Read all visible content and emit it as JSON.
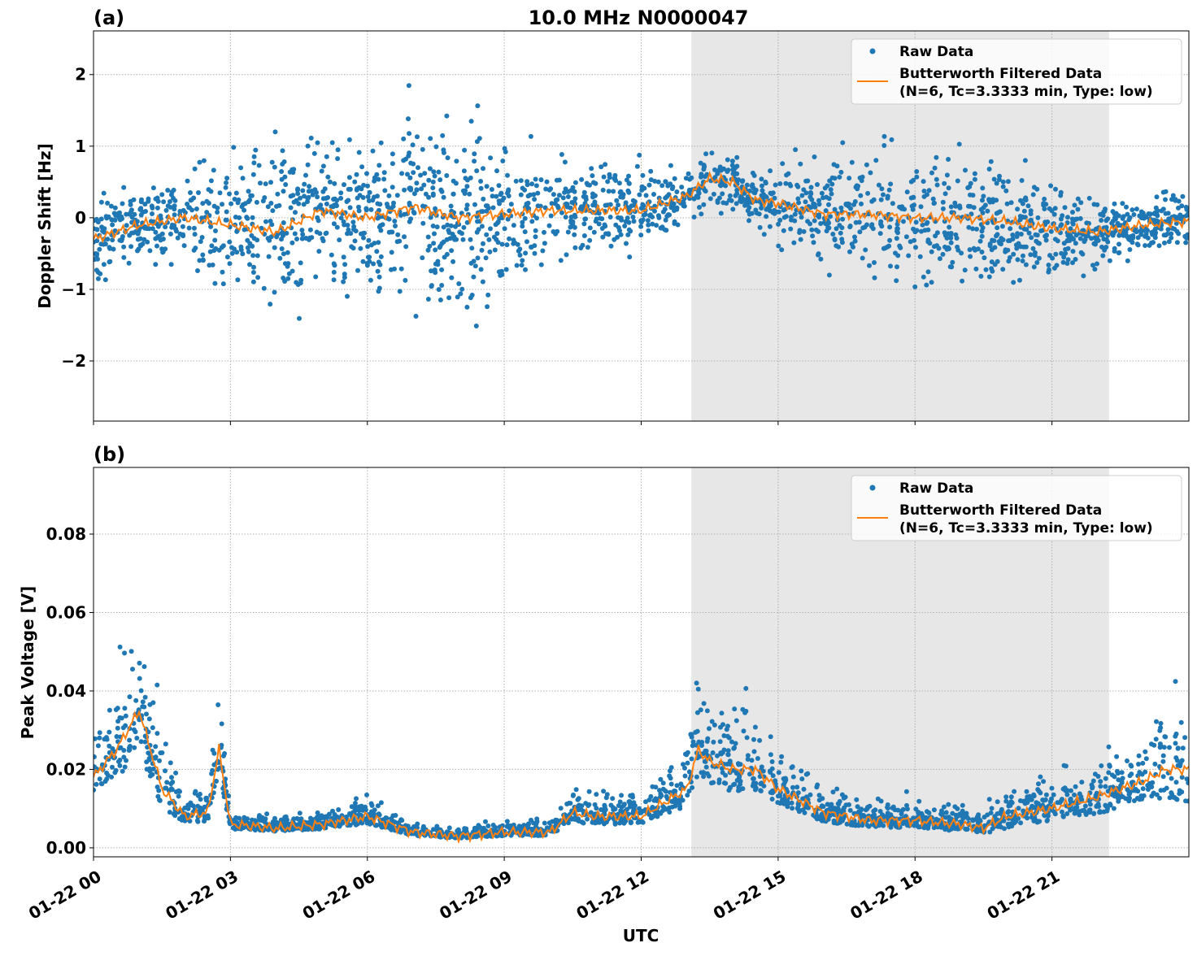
{
  "title": "10.0 MHz N0000047",
  "xlabel": "UTC",
  "x_tick_labels": [
    "01-22 00",
    "01-22 03",
    "01-22 06",
    "01-22 09",
    "01-22 12",
    "01-22 15",
    "01-22 18",
    "01-22 21"
  ],
  "colors": {
    "raw": "#1f77b4",
    "filtered": "#ff7f0e",
    "shade": "#e7e7e7"
  },
  "chart_data": [
    {
      "type": "scatter+line",
      "panel_label": "(a)",
      "ylabel": "Doppler Shift [Hz]",
      "xlim_hours": [
        0,
        24
      ],
      "ylim": [
        -2.84,
        2.61
      ],
      "y_ticks": [
        -2,
        -1,
        0,
        1,
        2
      ],
      "y_tick_labels": [
        "−2",
        "−1",
        "0",
        "1",
        "2"
      ],
      "grid": true,
      "shaded_region_hours": [
        13.1,
        22.25
      ],
      "legend": {
        "placement": "top-right",
        "raw": "Raw Data",
        "filtered_line1": "Butterworth Filtered Data",
        "filtered_line2": "(N=6, Tc=3.3333 min, Type: low)"
      },
      "x_hours": [
        0,
        1,
        2,
        3,
        4,
        5,
        6,
        7,
        8,
        9,
        10,
        11,
        12,
        13,
        13.5,
        14,
        14.5,
        15,
        16,
        17,
        18,
        19,
        20,
        21,
        22,
        23,
        24
      ],
      "filtered": [
        -0.3,
        -0.1,
        0.0,
        -0.1,
        -0.2,
        0.1,
        0.0,
        0.15,
        0.0,
        0.05,
        0.1,
        0.1,
        0.1,
        0.3,
        0.55,
        0.5,
        0.25,
        0.2,
        0.05,
        0.05,
        0.0,
        0.0,
        -0.05,
        -0.15,
        -0.2,
        -0.1,
        -0.05
      ],
      "raw_spread": [
        0.5,
        0.4,
        0.6,
        0.9,
        1.0,
        0.9,
        0.7,
        1.1,
        1.1,
        1.0,
        0.6,
        0.5,
        0.5,
        0.3,
        0.4,
        0.35,
        0.3,
        0.5,
        0.6,
        0.7,
        0.7,
        0.8,
        0.7,
        0.6,
        0.4,
        0.3,
        0.4
      ]
    },
    {
      "type": "scatter+line",
      "panel_label": "(b)",
      "ylabel": "Peak Voltage [V]",
      "xlim_hours": [
        0,
        24
      ],
      "ylim": [
        -0.0023,
        0.097
      ],
      "y_ticks": [
        0,
        0.02,
        0.04,
        0.06,
        0.08
      ],
      "y_tick_labels": [
        "0.00",
        "0.02",
        "0.04",
        "0.06",
        "0.08"
      ],
      "grid": true,
      "shaded_region_hours": [
        13.1,
        22.25
      ],
      "legend": {
        "placement": "top-right",
        "raw": "Raw Data",
        "filtered_line1": "Butterworth Filtered Data",
        "filtered_line2": "(N=6, Tc=3.3333 min, Type: low)"
      },
      "x_hours": [
        0,
        0.5,
        1,
        1.5,
        2,
        2.5,
        2.75,
        3,
        4,
        5,
        6,
        7,
        8,
        9,
        10,
        10.5,
        11,
        12,
        13,
        13.25,
        13.5,
        14,
        14.5,
        15,
        16,
        17,
        18,
        19,
        19.5,
        20,
        21,
        22,
        23,
        23.5,
        24
      ],
      "filtered": [
        0.018,
        0.025,
        0.035,
        0.015,
        0.008,
        0.009,
        0.025,
        0.006,
        0.005,
        0.006,
        0.008,
        0.004,
        0.003,
        0.004,
        0.004,
        0.009,
        0.008,
        0.008,
        0.015,
        0.025,
        0.022,
        0.02,
        0.02,
        0.015,
        0.009,
        0.007,
        0.007,
        0.006,
        0.005,
        0.008,
        0.01,
        0.013,
        0.017,
        0.02,
        0.02
      ],
      "raw_spread": [
        0.012,
        0.025,
        0.035,
        0.015,
        0.006,
        0.007,
        0.02,
        0.004,
        0.003,
        0.004,
        0.006,
        0.003,
        0.002,
        0.003,
        0.003,
        0.008,
        0.007,
        0.006,
        0.015,
        0.02,
        0.018,
        0.02,
        0.02,
        0.012,
        0.008,
        0.006,
        0.006,
        0.006,
        0.005,
        0.01,
        0.01,
        0.015,
        0.015,
        0.025,
        0.03
      ]
    }
  ]
}
